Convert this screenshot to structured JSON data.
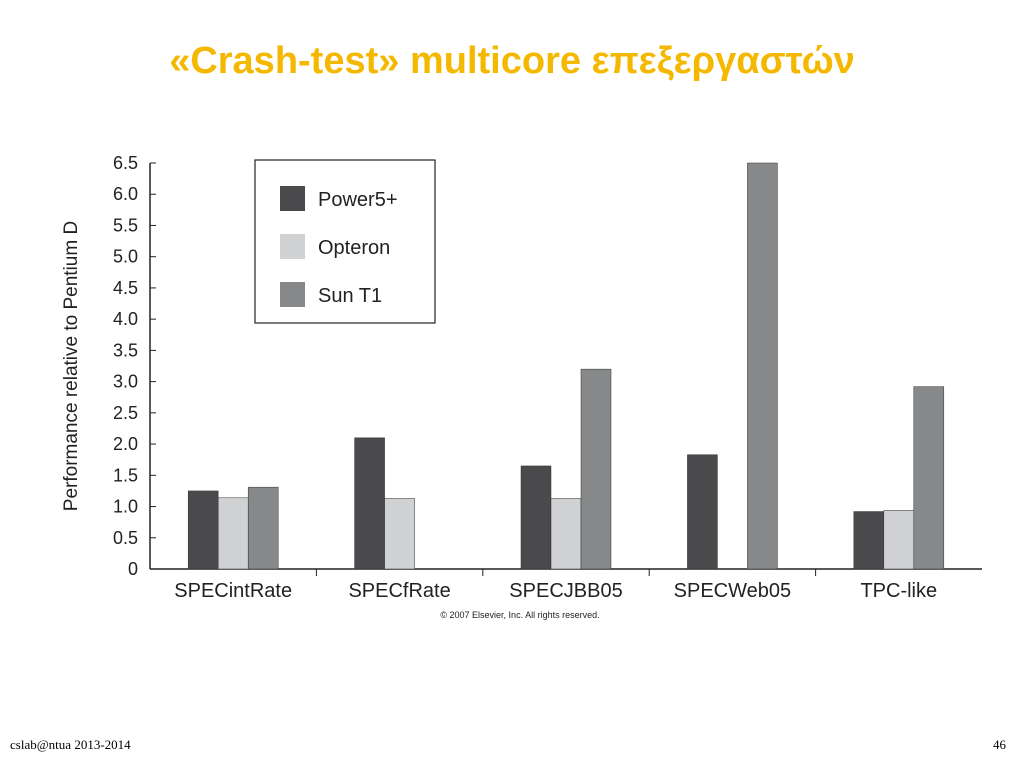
{
  "slide": {
    "title": "«Crash-test» multicore επεξεργαστών",
    "footer_left": "cslab@ntua 2013-2014",
    "page_number": "46"
  },
  "chart_data": {
    "type": "bar",
    "title": "",
    "xlabel": "",
    "ylabel": "Performance relative to Pentium D",
    "ylim": [
      0,
      6.5
    ],
    "yticks": [
      "0",
      "0.5",
      "1.0",
      "1.5",
      "2.0",
      "2.5",
      "3.0",
      "3.5",
      "4.0",
      "4.5",
      "5.0",
      "5.5",
      "6.0",
      "6.5"
    ],
    "categories": [
      "SPECintRate",
      "SPECfRate",
      "SPECJBB05",
      "SPECWeb05",
      "TPC-like"
    ],
    "series": [
      {
        "name": "Power5+",
        "color": "#4a4a4c",
        "values": [
          1.25,
          2.1,
          1.65,
          1.83,
          0.92
        ]
      },
      {
        "name": "Opteron",
        "color": "#cfd1d2",
        "values": [
          1.14,
          1.13,
          1.13,
          null,
          0.94
        ]
      },
      {
        "name": "Sun T1",
        "color": "#868889",
        "values": [
          1.31,
          null,
          3.2,
          6.5,
          2.92
        ]
      }
    ],
    "legend_position": "top-left",
    "grid": false,
    "copyright": "© 2007 Elsevier, Inc. All rights reserved."
  }
}
